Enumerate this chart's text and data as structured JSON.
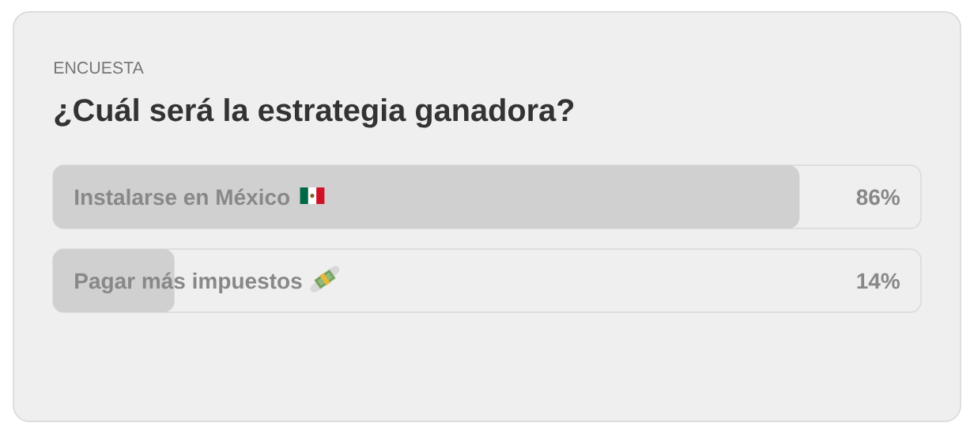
{
  "chart_data": {
    "type": "bar",
    "orientation": "horizontal",
    "subtitle": "ENCUESTA",
    "title": "¿Cuál será la estrategia ganadora?",
    "categories": [
      "Instalarse en México",
      "Pagar más impuestos"
    ],
    "values": [
      86,
      14
    ],
    "value_labels": [
      "86%",
      "14%"
    ],
    "color": "#d0d0d0",
    "xlim": [
      0,
      100
    ],
    "tick_labels": "y"
  }
}
